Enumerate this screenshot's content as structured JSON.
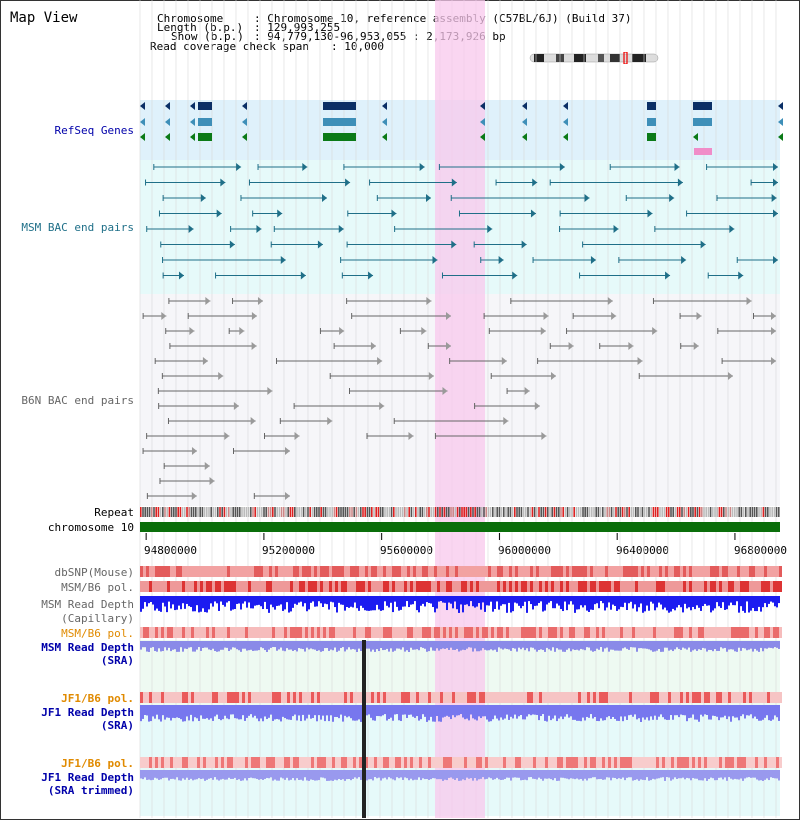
{
  "title": "Map View",
  "info": {
    "chromosome_label": "Chromosome",
    "chromosome_value": ": Chromosome 10, reference assembly (C57BL/6J) (Build 37)",
    "length_label": "Length (b.p.)",
    "length_value": ": 129,993,255",
    "show_label": "Show (b.p.)",
    "show_value": ": 94,779,130-96,953,055 : 2,173,926 bp",
    "coverage_label": "Read coverage check span",
    "coverage_value": ": 10,000"
  },
  "tracks": {
    "refseq": "RefSeq Genes",
    "msm_bac": "MSM BAC end pairs",
    "b6n_bac": "B6N BAC end pairs",
    "repeat": "Repeat",
    "chromosome": "chromosome 10",
    "dbsnp": "dbSNP(Mouse)",
    "msm_b6_pol": "MSM/B6 pol.",
    "msm_read_depth_cap_1": "MSM Read Depth",
    "msm_read_depth_cap_2": "(Capillary)",
    "msm_b6_pol_2": "MSM/B6 pol.",
    "msm_read_depth_sra_1": "MSM Read Depth",
    "msm_read_depth_sra_2": "(SRA)",
    "jf1_b6_pol": "JF1/B6 pol.",
    "jf1_read_depth_sra_1": "JF1 Read Depth",
    "jf1_read_depth_sra_2": "(SRA)",
    "jf1_b6_pol_2": "JF1/B6 pol.",
    "jf1_read_depth_trim_1": "JF1 Read Depth",
    "jf1_read_depth_trim_2": "(SRA trimmed)"
  },
  "axis": {
    "ticks": [
      "94800000",
      "95200000",
      "95600000",
      "96000000",
      "96400000",
      "96800000"
    ],
    "tick_values": [
      94800000,
      95200000,
      95600000,
      96000000,
      96400000,
      96800000
    ],
    "range": [
      94779130,
      96953055
    ]
  },
  "colors": {
    "gene_dark": "#0b2f66",
    "gene_mid": "#3e8fb8",
    "gene_green": "#0b7a17",
    "msm_line": "#1f6f88",
    "b6n_line": "#666666",
    "chromosome": "#0a6e0a",
    "highlight": "#f8c8ec",
    "label_blue": "#0000aa",
    "label_orange": "#e08a00",
    "label_gray": "#666666"
  }
}
